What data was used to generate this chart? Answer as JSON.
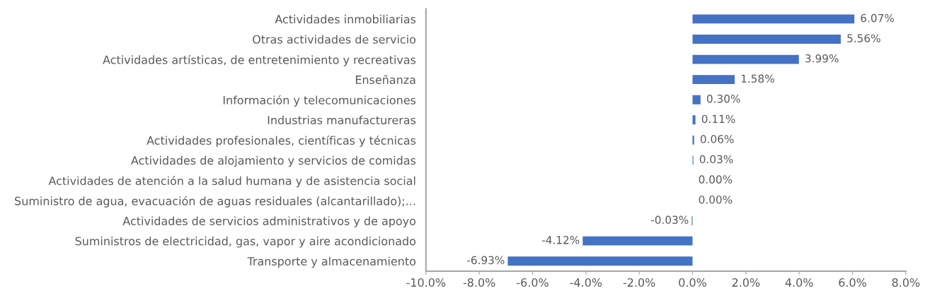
{
  "chart_data": {
    "type": "bar",
    "orientation": "horizontal",
    "categories": [
      "Actividades inmobiliarias",
      "Otras actividades de servicio",
      "Actividades artísticas, de entretenimiento y recreativas",
      "Enseñanza",
      "Información y telecomunicaciones",
      "Industrias manufactureras",
      "Actividades profesionales, científicas y técnicas",
      "Actividades de alojamiento y servicios de comidas",
      "Actividades de atención a la salud humana y de asistencia social",
      "Suministro de agua, evacuación de aguas residuales (alcantarillado);...",
      "Actividades de servicios administrativos y de apoyo",
      "Suministros de electricidad, gas, vapor y aire acondicionado",
      "Transporte y almacenamiento"
    ],
    "values": [
      6.07,
      5.56,
      3.99,
      1.58,
      0.3,
      0.11,
      0.06,
      0.03,
      0.0,
      0.0,
      -0.03,
      -4.12,
      -6.93
    ],
    "value_labels": [
      "6.07%",
      "5.56%",
      "3.99%",
      "1.58%",
      "0.30%",
      "0.11%",
      "0.06%",
      "0.03%",
      "0.00%",
      "0.00%",
      "-0.03%",
      "-4.12%",
      "-6.93%"
    ],
    "color": "#4472c4",
    "xlim": [
      -10,
      8
    ],
    "xticks": [
      {
        "value": -10,
        "label": "-10.0%"
      },
      {
        "value": -8,
        "label": "-8.0%"
      },
      {
        "value": -6,
        "label": "-6.0%"
      },
      {
        "value": -4,
        "label": "-4.0%"
      },
      {
        "value": -2,
        "label": "-2.0%"
      },
      {
        "value": 0,
        "label": "0.0%"
      },
      {
        "value": 2,
        "label": "2.0%"
      },
      {
        "value": 4,
        "label": "4.0%"
      },
      {
        "value": 6,
        "label": "6.0%"
      },
      {
        "value": 8,
        "label": "8.0%"
      }
    ],
    "grid": false,
    "legend": false
  }
}
